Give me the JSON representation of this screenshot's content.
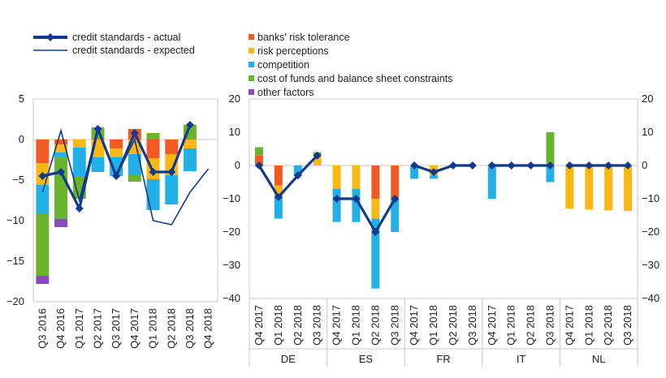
{
  "colors": {
    "banks_risk_tolerance": "#f05a23",
    "risk_perceptions": "#fbb714",
    "competition": "#22b0e6",
    "cost_of_funds": "#6ab42d",
    "other_factors": "#8a4cb9",
    "actual": "#123a8c",
    "expected": "#123a8c"
  },
  "legend": {
    "actual": "credit standards - actual",
    "expected": "credit standards - expected",
    "banks_risk_tolerance": "banks' risk tolerance",
    "risk_perceptions": "risk perceptions",
    "competition": "competition",
    "cost_of_funds": "cost of funds and balance sheet constraints",
    "other_factors": "other factors"
  },
  "chart_data": [
    {
      "type": "bar",
      "subtype": "stacked-bar-with-lines",
      "categories": [
        "Q3 2016",
        "Q4 2016",
        "Q1 2017",
        "Q2 2017",
        "Q3 2017",
        "Q4 2017",
        "Q1 2018",
        "Q2 2018",
        "Q3 2018",
        "Q4 2018"
      ],
      "ylim": [
        -20,
        5
      ],
      "yticks": [
        5,
        0,
        -5,
        -10,
        -15,
        -20
      ],
      "series": [
        {
          "key": "banks_risk_tolerance",
          "values": [
            -2.9,
            -0.6,
            0,
            0,
            -1.1,
            1.3,
            -2.3,
            -1.8,
            0,
            null
          ]
        },
        {
          "key": "risk_perceptions",
          "values": [
            -2.7,
            -1,
            -1,
            -2.2,
            -1.1,
            -1.8,
            -2.6,
            -2.6,
            -1.1,
            null
          ]
        },
        {
          "key": "competition",
          "values": [
            -3.5,
            -0.5,
            -3.5,
            -1.8,
            -2.3,
            -2.6,
            -3.8,
            -3.6,
            -2.8,
            null
          ]
        },
        {
          "key": "cost_of_funds",
          "values": [
            -7.7,
            -7.7,
            -2.8,
            1.5,
            0,
            -0.8,
            0.8,
            0,
            1.8,
            null
          ]
        },
        {
          "key": "other_factors",
          "values": [
            -1,
            -1,
            0,
            0,
            0,
            0,
            0,
            0,
            0,
            null
          ]
        }
      ],
      "actual": [
        -4.5,
        -4,
        -8.5,
        1.3,
        -4.5,
        0.8,
        -4,
        -4,
        1.8,
        null
      ],
      "expected": [
        -6.5,
        1.1,
        -7.5,
        1.3,
        -4.5,
        0,
        -10,
        -10.5,
        -6.5,
        -3.6
      ]
    },
    {
      "type": "bar",
      "subtype": "stacked-bar-with-lines",
      "groups": [
        "DE",
        "ES",
        "FR",
        "IT",
        "NL"
      ],
      "quarters": [
        "Q4 2017",
        "Q1 2018",
        "Q2 2018",
        "Q3 2018"
      ],
      "ylim": [
        -40,
        20
      ],
      "yticks": [
        20,
        10,
        0,
        -10,
        -20,
        -30,
        -40
      ],
      "series": [
        {
          "key": "banks_risk_tolerance",
          "values": [
            [
              3,
              -6,
              0,
              0
            ],
            [
              0,
              0,
              -10,
              -10
            ],
            [
              0,
              0,
              0,
              0
            ],
            [
              0,
              0,
              0,
              0
            ],
            [
              0,
              0,
              0,
              0
            ]
          ]
        },
        {
          "key": "risk_perceptions",
          "values": [
            [
              0,
              -3,
              0,
              3
            ],
            [
              -7,
              -7,
              -6,
              0
            ],
            [
              0,
              -3,
              0,
              0
            ],
            [
              0,
              0,
              0,
              0
            ],
            [
              -13,
              -13.3,
              -13.5,
              -13.7
            ]
          ]
        },
        {
          "key": "competition",
          "values": [
            [
              0,
              -7,
              -3,
              0
            ],
            [
              -10,
              -10,
              -21,
              -10
            ],
            [
              -4,
              -1,
              0,
              0
            ],
            [
              -10,
              0,
              0,
              -5
            ],
            [
              0,
              0,
              0,
              0
            ]
          ]
        },
        {
          "key": "cost_of_funds",
          "values": [
            [
              2.5,
              0,
              0,
              1
            ],
            [
              0,
              0,
              0,
              0
            ],
            [
              0,
              0,
              0,
              0
            ],
            [
              0,
              0,
              0,
              10
            ],
            [
              0,
              0,
              0,
              0
            ]
          ]
        }
      ],
      "actual": [
        [
          0,
          -9.5,
          -3,
          3
        ],
        [
          -10,
          -10,
          -20,
          -10
        ],
        [
          0,
          -2,
          0,
          0
        ],
        [
          0,
          0,
          0,
          0
        ],
        [
          0,
          0,
          0,
          0
        ]
      ]
    }
  ]
}
